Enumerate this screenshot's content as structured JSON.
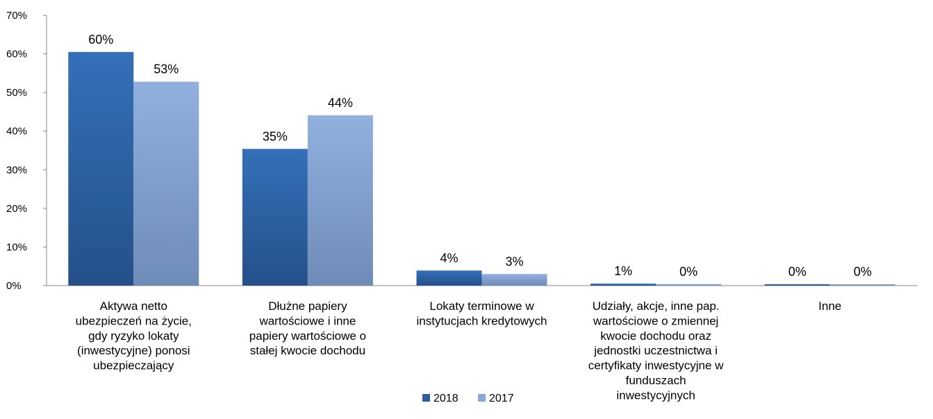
{
  "chart_data": {
    "type": "bar",
    "categories": [
      [
        "Aktywa netto",
        "ubezpieczeń na życie,",
        "gdy ryzyko lokaty",
        "(inwestycyjne) ponosi",
        "ubezpieczający"
      ],
      [
        "Dłużne papiery",
        "wartościowe i inne",
        "papiery wartościowe o",
        "stałej kwocie dochodu"
      ],
      [
        "Lokaty terminowe w",
        "instytucjach kredytowych"
      ],
      [
        "Udziały, akcje, inne pap.",
        "wartościowe  o zmiennej",
        "kwocie dochodu oraz",
        "jednostki uczestnictwa i",
        "certyfikaty inwestycyjne w",
        "funduszach",
        "inwestycyjnych"
      ],
      [
        "Inne"
      ]
    ],
    "series": [
      {
        "name": "2018",
        "values": [
          60.5,
          35.4,
          3.9,
          0.5,
          0.3
        ],
        "labels": [
          "60%",
          "35%",
          "4%",
          "1%",
          "0%"
        ],
        "color": "#2E5E9E"
      },
      {
        "name": "2017",
        "values": [
          52.8,
          44.1,
          3.0,
          0.4,
          0.3
        ],
        "labels": [
          "53%",
          "44%",
          "3%",
          "0%",
          "0%"
        ],
        "color": "#8AA8D6"
      }
    ],
    "ylim": [
      0,
      70
    ],
    "yticks": [
      "0%",
      "10%",
      "20%",
      "30%",
      "40%",
      "50%",
      "60%",
      "70%"
    ],
    "grid": false,
    "legend_position": "bottom",
    "title": "",
    "xlabel": "",
    "ylabel": ""
  }
}
